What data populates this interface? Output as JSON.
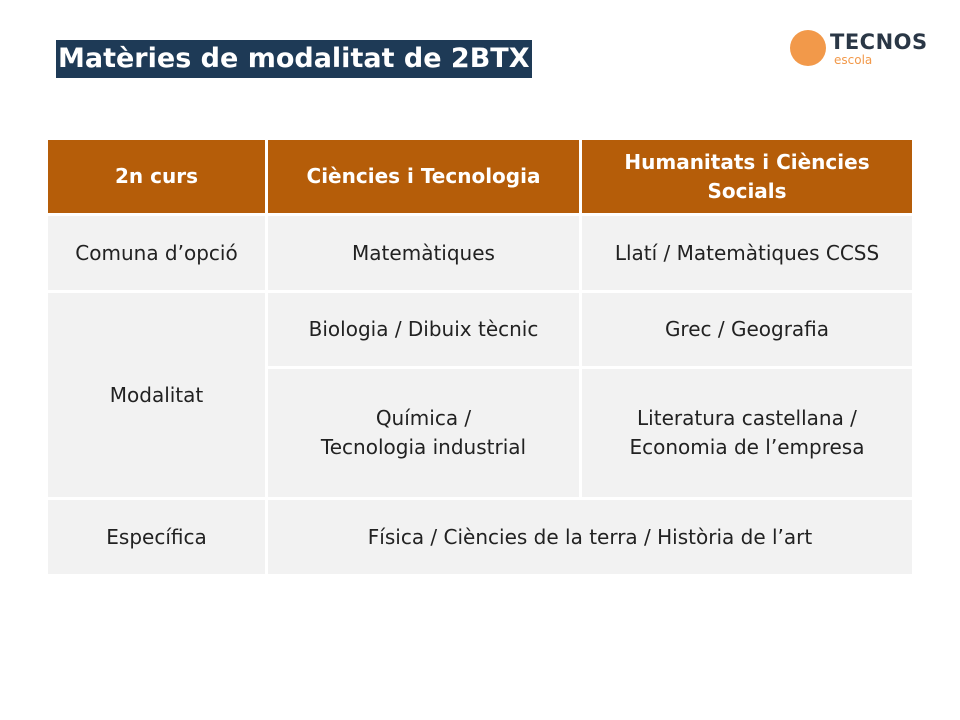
{
  "header": {
    "title": "Matèries de modalitat de 2BTX",
    "logo": {
      "name": "TECNOS",
      "subtitle": "escola"
    }
  },
  "table": {
    "columns": [
      "2n curs",
      "Ciències i Tecnologia",
      "Humanitats i Ciències Socials"
    ],
    "rows": [
      [
        "Comuna d’opció",
        "Matemàtiques",
        "Llatí / Matemàtiques CCSS"
      ],
      [
        "Modalitat",
        "Biologia / Dibuix tècnic",
        "Grec / Geografia"
      ],
      [
        "Química /\nTecnologia industrial",
        "Literatura castellana /\nEconomia de l’empresa"
      ],
      [
        "Específica",
        "Física / Ciències de la terra / Història de l’art"
      ]
    ]
  }
}
